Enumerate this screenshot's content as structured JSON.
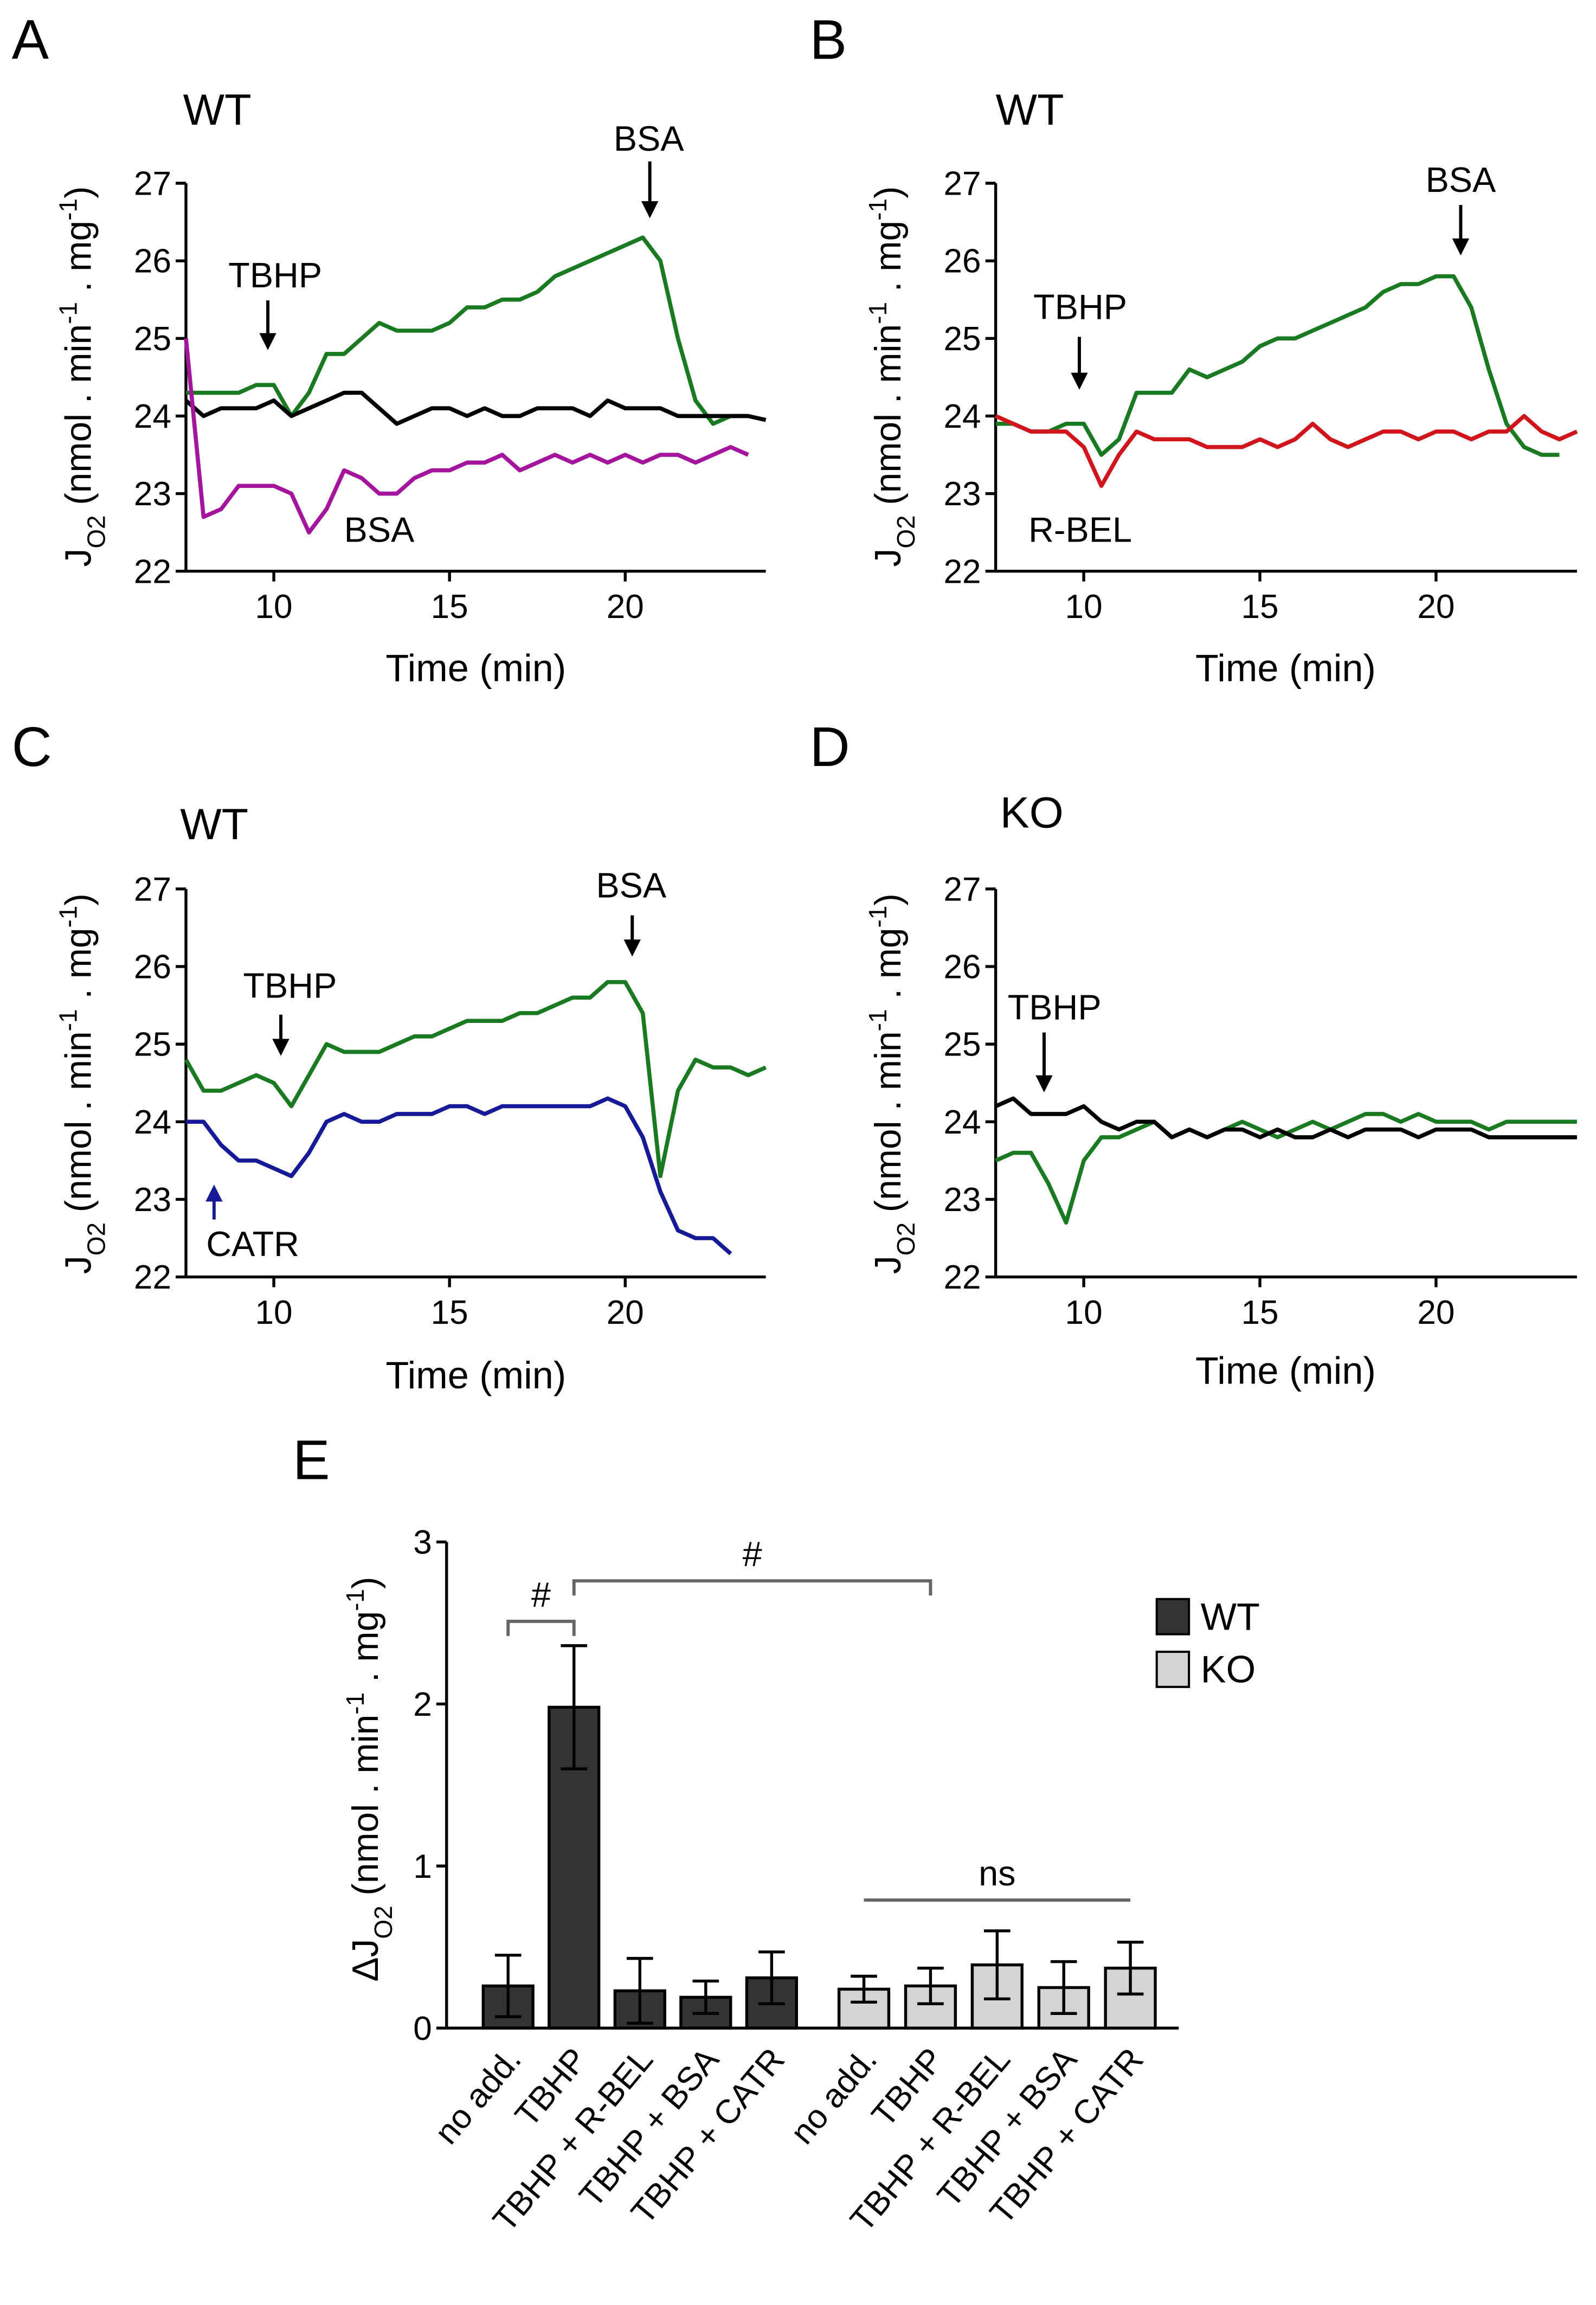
{
  "chart_data": [
    {
      "type": "line",
      "panel": "A",
      "subtitle": "WT",
      "x_label": "Time (min)",
      "y_label": [
        {
          "text": "J"
        },
        {
          "text": "O2",
          "script": "sub"
        },
        {
          "text": " (nmol . min"
        },
        {
          "text": "-1",
          "script": "sup"
        },
        {
          "text": " . mg"
        },
        {
          "text": "-1",
          "script": "sup"
        },
        {
          "text": ")"
        }
      ],
      "xlim": [
        7.5,
        24
      ],
      "xticks": [
        10,
        15,
        20
      ],
      "ylim": [
        22,
        27
      ],
      "yticks": [
        22,
        23,
        24,
        25,
        26,
        27
      ],
      "x": [
        7.5,
        8,
        8.5,
        9,
        9.5,
        10,
        10.5,
        11,
        11.5,
        12,
        12.5,
        13,
        13.5,
        14,
        14.5,
        15,
        15.5,
        16,
        16.5,
        17,
        17.5,
        18,
        18.5,
        19,
        19.5,
        20,
        20.5,
        21,
        21.5,
        22,
        22.5,
        23,
        23.5,
        24
      ],
      "series": [
        {
          "color": "#1a7a22",
          "values": [
            24.3,
            24.3,
            24.3,
            24.3,
            24.4,
            24.4,
            24.0,
            24.3,
            24.8,
            24.8,
            25.0,
            25.2,
            25.1,
            25.1,
            25.1,
            25.2,
            25.4,
            25.4,
            25.5,
            25.5,
            25.6,
            25.8,
            25.9,
            26.0,
            26.1,
            26.2,
            26.3,
            26.0,
            25.0,
            24.2,
            23.9,
            24.0,
            24.0,
            null
          ]
        },
        {
          "color": "#000000",
          "values": [
            24.2,
            24.0,
            24.1,
            24.1,
            24.1,
            24.2,
            24.0,
            24.1,
            24.2,
            24.3,
            24.3,
            24.1,
            23.9,
            24.0,
            24.1,
            24.1,
            24.0,
            24.1,
            24.0,
            24.0,
            24.1,
            24.1,
            24.1,
            24.0,
            24.2,
            24.1,
            24.1,
            24.1,
            24.0,
            24.0,
            24.0,
            24.0,
            24.0,
            23.95
          ]
        },
        {
          "color": "#a4149c",
          "values": [
            25.0,
            22.7,
            22.8,
            23.1,
            23.1,
            23.1,
            23.0,
            22.5,
            22.8,
            23.3,
            23.2,
            23.0,
            23.0,
            23.2,
            23.3,
            23.3,
            23.4,
            23.4,
            23.5,
            23.3,
            23.4,
            23.5,
            23.4,
            23.5,
            23.4,
            23.5,
            23.4,
            23.5,
            23.5,
            23.4,
            23.5,
            23.6,
            23.5,
            null
          ]
        }
      ],
      "annotations": [
        {
          "text": "TBHP",
          "x": 10.04,
          "y": 25.81,
          "color": "#000000",
          "arrow": [
            9.83,
            25.49,
            24.87
          ]
        },
        {
          "text": "BSA",
          "x": 20.67,
          "y": 27.57,
          "color": "#000000",
          "arrow": [
            20.7,
            27.28,
            26.57
          ]
        },
        {
          "text": "BSA",
          "x": 13.0,
          "y": 22.53,
          "color": "#a4149c"
        }
      ]
    },
    {
      "type": "line",
      "panel": "B",
      "subtitle": "WT",
      "x_label": "Time (min)",
      "y_label": [
        {
          "text": "J"
        },
        {
          "text": "O2",
          "script": "sub"
        },
        {
          "text": " (nmol . min"
        },
        {
          "text": "-1",
          "script": "sup"
        },
        {
          "text": " . mg"
        },
        {
          "text": "-1",
          "script": "sup"
        },
        {
          "text": ")"
        }
      ],
      "xlim": [
        7.5,
        24
      ],
      "xticks": [
        10,
        15,
        20
      ],
      "ylim": [
        22,
        27
      ],
      "yticks": [
        22,
        23,
        24,
        25,
        26,
        27
      ],
      "x": [
        7.5,
        8,
        8.5,
        9,
        9.5,
        10,
        10.5,
        11,
        11.5,
        12,
        12.5,
        13,
        13.5,
        14,
        14.5,
        15,
        15.5,
        16,
        16.5,
        17,
        17.5,
        18,
        18.5,
        19,
        19.5,
        20,
        20.5,
        21,
        21.5,
        22,
        22.5,
        23,
        23.5,
        24
      ],
      "series": [
        {
          "color": "#1a7a22",
          "values": [
            23.9,
            23.9,
            23.8,
            23.8,
            23.9,
            23.9,
            23.5,
            23.7,
            24.3,
            24.3,
            24.3,
            24.6,
            24.5,
            24.6,
            24.7,
            24.9,
            25.0,
            25.0,
            25.1,
            25.2,
            25.3,
            25.4,
            25.6,
            25.7,
            25.7,
            25.8,
            25.8,
            25.4,
            24.6,
            23.9,
            23.6,
            23.5,
            23.5,
            null
          ]
        },
        {
          "color": "#d0161c",
          "values": [
            24.0,
            23.9,
            23.8,
            23.8,
            23.8,
            23.6,
            23.1,
            23.5,
            23.8,
            23.7,
            23.7,
            23.7,
            23.6,
            23.6,
            23.6,
            23.7,
            23.6,
            23.7,
            23.9,
            23.7,
            23.6,
            23.7,
            23.8,
            23.8,
            23.7,
            23.8,
            23.8,
            23.7,
            23.8,
            23.8,
            24.0,
            23.8,
            23.7,
            23.8
          ]
        }
      ],
      "annotations": [
        {
          "text": "TBHP",
          "x": 9.9,
          "y": 25.4,
          "color": "#000000",
          "arrow": [
            9.875,
            25.02,
            24.36
          ]
        },
        {
          "text": "BSA",
          "x": 20.7,
          "y": 27.04,
          "color": "#000000",
          "arrow": [
            20.7,
            26.72,
            26.09
          ]
        },
        {
          "text": "R-BEL",
          "x": 9.9,
          "y": 22.53,
          "color": "#d0161c"
        }
      ]
    },
    {
      "type": "line",
      "panel": "C",
      "subtitle": "WT",
      "x_label": "Time (min)",
      "y_label": [
        {
          "text": "J"
        },
        {
          "text": "O2",
          "script": "sub"
        },
        {
          "text": " (nmol . min"
        },
        {
          "text": "-1",
          "script": "sup"
        },
        {
          "text": " . mg"
        },
        {
          "text": "-1",
          "script": "sup"
        },
        {
          "text": ")"
        }
      ],
      "xlim": [
        7.5,
        24
      ],
      "xticks": [
        10,
        15,
        20
      ],
      "ylim": [
        22,
        27
      ],
      "yticks": [
        22,
        23,
        24,
        25,
        26,
        27
      ],
      "x": [
        7.5,
        8,
        8.5,
        9,
        9.5,
        10,
        10.5,
        11,
        11.5,
        12,
        12.5,
        13,
        13.5,
        14,
        14.5,
        15,
        15.5,
        16,
        16.5,
        17,
        17.5,
        18,
        18.5,
        19,
        19.5,
        20,
        20.5,
        21,
        21.5,
        22,
        22.5,
        23,
        23.5,
        24
      ],
      "series": [
        {
          "color": "#1a7a22",
          "values": [
            24.8,
            24.4,
            24.4,
            24.5,
            24.6,
            24.5,
            24.2,
            24.6,
            25.0,
            24.9,
            24.9,
            24.9,
            25.0,
            25.1,
            25.1,
            25.2,
            25.3,
            25.3,
            25.3,
            25.4,
            25.4,
            25.5,
            25.6,
            25.6,
            25.8,
            25.8,
            25.4,
            23.3,
            24.4,
            24.8,
            24.7,
            24.7,
            24.6,
            24.7
          ]
        },
        {
          "color": "#161a96",
          "values": [
            24.0,
            24.0,
            23.7,
            23.5,
            23.5,
            23.4,
            23.3,
            23.6,
            24.0,
            24.1,
            24.0,
            24.0,
            24.1,
            24.1,
            24.1,
            24.2,
            24.2,
            24.1,
            24.2,
            24.2,
            24.2,
            24.2,
            24.2,
            24.2,
            24.3,
            24.2,
            23.8,
            23.1,
            22.6,
            22.5,
            22.5,
            22.3,
            null,
            null
          ]
        }
      ],
      "annotations": [
        {
          "text": "TBHP",
          "x": 10.46,
          "y": 25.75,
          "color": "#000000",
          "arrow": [
            10.2,
            25.38,
            24.87
          ]
        },
        {
          "text": "BSA",
          "x": 20.17,
          "y": 27.04,
          "color": "#000000",
          "arrow": [
            20.2,
            26.66,
            26.15
          ]
        },
        {
          "text": "CATR",
          "x": 9.4,
          "y": 22.42,
          "color": "#161a96",
          "arrow": [
            8.3,
            22.74,
            23.17
          ]
        }
      ]
    },
    {
      "type": "line",
      "panel": "D",
      "subtitle": "KO",
      "x_label": "Time (min)",
      "y_label": [
        {
          "text": "J"
        },
        {
          "text": "O2",
          "script": "sub"
        },
        {
          "text": " (nmol . min"
        },
        {
          "text": "-1",
          "script": "sup"
        },
        {
          "text": " . mg"
        },
        {
          "text": "-1",
          "script": "sup"
        },
        {
          "text": ")"
        }
      ],
      "xlim": [
        7.5,
        24
      ],
      "xticks": [
        10,
        15,
        20
      ],
      "ylim": [
        22,
        27
      ],
      "yticks": [
        22,
        23,
        24,
        25,
        26,
        27
      ],
      "x": [
        7.5,
        8,
        8.5,
        9,
        9.5,
        10,
        10.5,
        11,
        11.5,
        12,
        12.5,
        13,
        13.5,
        14,
        14.5,
        15,
        15.5,
        16,
        16.5,
        17,
        17.5,
        18,
        18.5,
        19,
        19.5,
        20,
        20.5,
        21,
        21.5,
        22,
        22.5,
        23,
        23.5,
        24
      ],
      "series": [
        {
          "color": "#1a7a22",
          "values": [
            23.5,
            23.6,
            23.6,
            23.2,
            22.7,
            23.5,
            23.8,
            23.8,
            23.9,
            24.0,
            23.8,
            23.9,
            23.8,
            23.9,
            24.0,
            23.9,
            23.8,
            23.9,
            24.0,
            23.9,
            24.0,
            24.1,
            24.1,
            24.0,
            24.1,
            24.0,
            24.0,
            24.0,
            23.9,
            24.0,
            24.0,
            24.0,
            24.0,
            24.0
          ]
        },
        {
          "color": "#000000",
          "values": [
            24.2,
            24.3,
            24.1,
            24.1,
            24.1,
            24.2,
            24.0,
            23.9,
            24.0,
            24.0,
            23.8,
            23.9,
            23.8,
            23.9,
            23.9,
            23.8,
            23.9,
            23.8,
            23.8,
            23.9,
            23.8,
            23.9,
            23.9,
            23.9,
            23.8,
            23.9,
            23.9,
            23.9,
            23.8,
            23.8,
            23.8,
            23.8,
            23.8,
            23.8
          ]
        }
      ],
      "annotations": [
        {
          "text": "TBHP",
          "x": 9.17,
          "y": 25.47,
          "color": "#000000",
          "arrow": [
            8.875,
            25.15,
            24.4
          ]
        }
      ]
    },
    {
      "type": "bar",
      "panel": "E",
      "y_label": [
        {
          "text": "ΔJ"
        },
        {
          "text": "O2",
          "script": "sub"
        },
        {
          "text": " (nmol . min"
        },
        {
          "text": "-1",
          "script": "sup"
        },
        {
          "text": " . mg"
        },
        {
          "text": "-1",
          "script": "sup"
        },
        {
          "text": ")"
        }
      ],
      "ylim": [
        0,
        3
      ],
      "yticks": [
        0,
        1,
        2,
        3
      ],
      "categories": [
        "no add.",
        "TBHP",
        "TBHP + R-BEL",
        "TBHP + BSA",
        "TBHP + CATR",
        "no add.",
        "TBHP",
        "TBHP + R-BEL",
        "TBHP + BSA",
        "TBHP + CATR"
      ],
      "series": [
        {
          "name": "WT",
          "color": "#333333",
          "values": [
            0.26,
            1.98,
            0.23,
            0.19,
            0.31,
            null,
            null,
            null,
            null,
            null
          ],
          "errors": [
            0.19,
            0.38,
            0.2,
            0.1,
            0.16,
            null,
            null,
            null,
            null,
            null
          ]
        },
        {
          "name": "KO",
          "color": "#d4d4d4",
          "values": [
            null,
            null,
            null,
            null,
            null,
            0.24,
            0.26,
            0.39,
            0.25,
            0.37
          ],
          "errors": [
            null,
            null,
            null,
            null,
            null,
            0.08,
            0.11,
            0.21,
            0.16,
            0.16
          ]
        }
      ],
      "legend": "right",
      "brackets": [
        {
          "text": "#",
          "from": 0,
          "to": 1,
          "y": 2.51,
          "ticks": true
        },
        {
          "text": "#",
          "from": 1,
          "to": 6,
          "y": 2.76,
          "ticks": true
        },
        {
          "text": "ns",
          "from": 5,
          "to": 9,
          "y": 0.79,
          "ticks": false
        }
      ]
    }
  ]
}
